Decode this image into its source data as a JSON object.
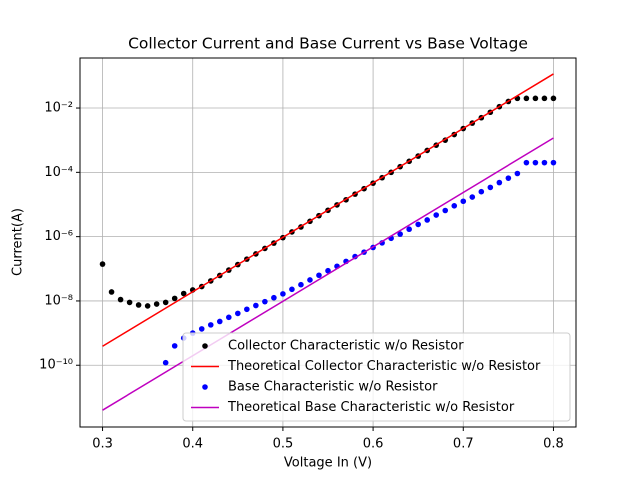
{
  "chart_data": {
    "type": "line",
    "title": "Collector Current and Base Current vs Base Voltage",
    "xlabel": "Voltage In (V)",
    "ylabel": "Current(A)",
    "xlim": [
      0.275,
      0.825
    ],
    "xticks": [
      0.3,
      0.4,
      0.5,
      0.6,
      0.7,
      0.8
    ],
    "ylim": [
      1.2e-12,
      0.36
    ],
    "ylog": true,
    "yticks": [
      {
        "value": 1e-10,
        "label": "10⁻¹⁰"
      },
      {
        "value": 1e-08,
        "label": "10⁻⁸"
      },
      {
        "value": 1e-06,
        "label": "10⁻⁶"
      },
      {
        "value": 0.0001,
        "label": "10⁻⁴"
      },
      {
        "value": 0.01,
        "label": "10⁻²"
      }
    ],
    "grid": true,
    "legend": "lower right",
    "series": [
      {
        "name": "Collector Characteristic w/o Resistor",
        "color": "#000000",
        "style": "dots",
        "x": [
          0.3,
          0.31,
          0.32,
          0.33,
          0.34,
          0.35,
          0.36,
          0.37,
          0.38,
          0.39,
          0.4,
          0.41,
          0.42,
          0.43,
          0.44,
          0.45,
          0.46,
          0.47,
          0.48,
          0.49,
          0.5,
          0.51,
          0.52,
          0.53,
          0.54,
          0.55,
          0.56,
          0.57,
          0.58,
          0.59,
          0.6,
          0.61,
          0.62,
          0.63,
          0.64,
          0.65,
          0.66,
          0.67,
          0.68,
          0.69,
          0.7,
          0.71,
          0.72,
          0.73,
          0.74,
          0.75,
          0.76,
          0.77,
          0.78,
          0.79,
          0.8
        ],
        "values": [
          1.4e-07,
          1.9e-08,
          1.1e-08,
          9e-09,
          7.5e-09,
          7e-09,
          8e-09,
          9e-09,
          1.2e-08,
          1.7e-08,
          2.2e-08,
          2.8e-08,
          4.2e-08,
          6.2e-08,
          9.1e-08,
          1.35e-07,
          2e-07,
          2.9e-07,
          4.3e-07,
          6.3e-07,
          9.3e-07,
          1.4e-06,
          2e-06,
          3e-06,
          4.5e-06,
          6.6e-06,
          9.7e-06,
          1.4e-05,
          2.1e-05,
          3.1e-05,
          4.6e-05,
          6.8e-05,
          0.0001,
          0.00015,
          0.00022,
          0.00032,
          0.00048,
          0.0007,
          0.001,
          0.0015,
          0.0023,
          0.0034,
          0.005,
          0.0074,
          0.011,
          0.016,
          0.02,
          0.02,
          0.02,
          0.02,
          0.02
        ]
      },
      {
        "name": "Theoretical Collector Characteristic w/o Resistor",
        "color": "#ff0000",
        "style": "line",
        "x": [
          0.3,
          0.8
        ],
        "values": [
          3.9e-10,
          0.115
        ]
      },
      {
        "name": "Base Characteristic w/o Resistor",
        "color": "#0000ff",
        "style": "dots",
        "x": [
          0.37,
          0.38,
          0.39,
          0.4,
          0.41,
          0.42,
          0.43,
          0.44,
          0.45,
          0.46,
          0.47,
          0.48,
          0.49,
          0.5,
          0.51,
          0.52,
          0.53,
          0.54,
          0.55,
          0.56,
          0.57,
          0.58,
          0.59,
          0.6,
          0.61,
          0.62,
          0.63,
          0.64,
          0.65,
          0.66,
          0.67,
          0.68,
          0.69,
          0.7,
          0.71,
          0.72,
          0.73,
          0.74,
          0.75,
          0.76,
          0.77,
          0.78,
          0.79,
          0.8
        ],
        "values": [
          1.2e-10,
          4e-10,
          7e-10,
          1e-09,
          1.35e-09,
          1.8e-09,
          2.3e-09,
          3.1e-09,
          4.1e-09,
          5.5e-09,
          7.2e-09,
          9.5e-09,
          1.26e-08,
          1.66e-08,
          2.3e-08,
          3.2e-08,
          4.5e-08,
          6.3e-08,
          8.7e-08,
          1.2e-07,
          1.7e-07,
          2.4e-07,
          3.3e-07,
          4.6e-07,
          6.4e-07,
          8.9e-07,
          1.2e-06,
          1.7e-06,
          2.4e-06,
          3.3e-06,
          4.7e-06,
          6.5e-06,
          9.1e-06,
          1.26e-05,
          1.7e-05,
          2.5e-05,
          3.4e-05,
          4.8e-05,
          6.6e-05,
          9.2e-05,
          0.0002,
          0.0002,
          0.0002,
          0.0002
        ]
      },
      {
        "name": "Theoretical Base Characteristic w/o Resistor",
        "color": "#bf00bf",
        "style": "line",
        "x": [
          0.3,
          0.8
        ],
        "values": [
          4e-12,
          0.00117
        ]
      }
    ]
  }
}
